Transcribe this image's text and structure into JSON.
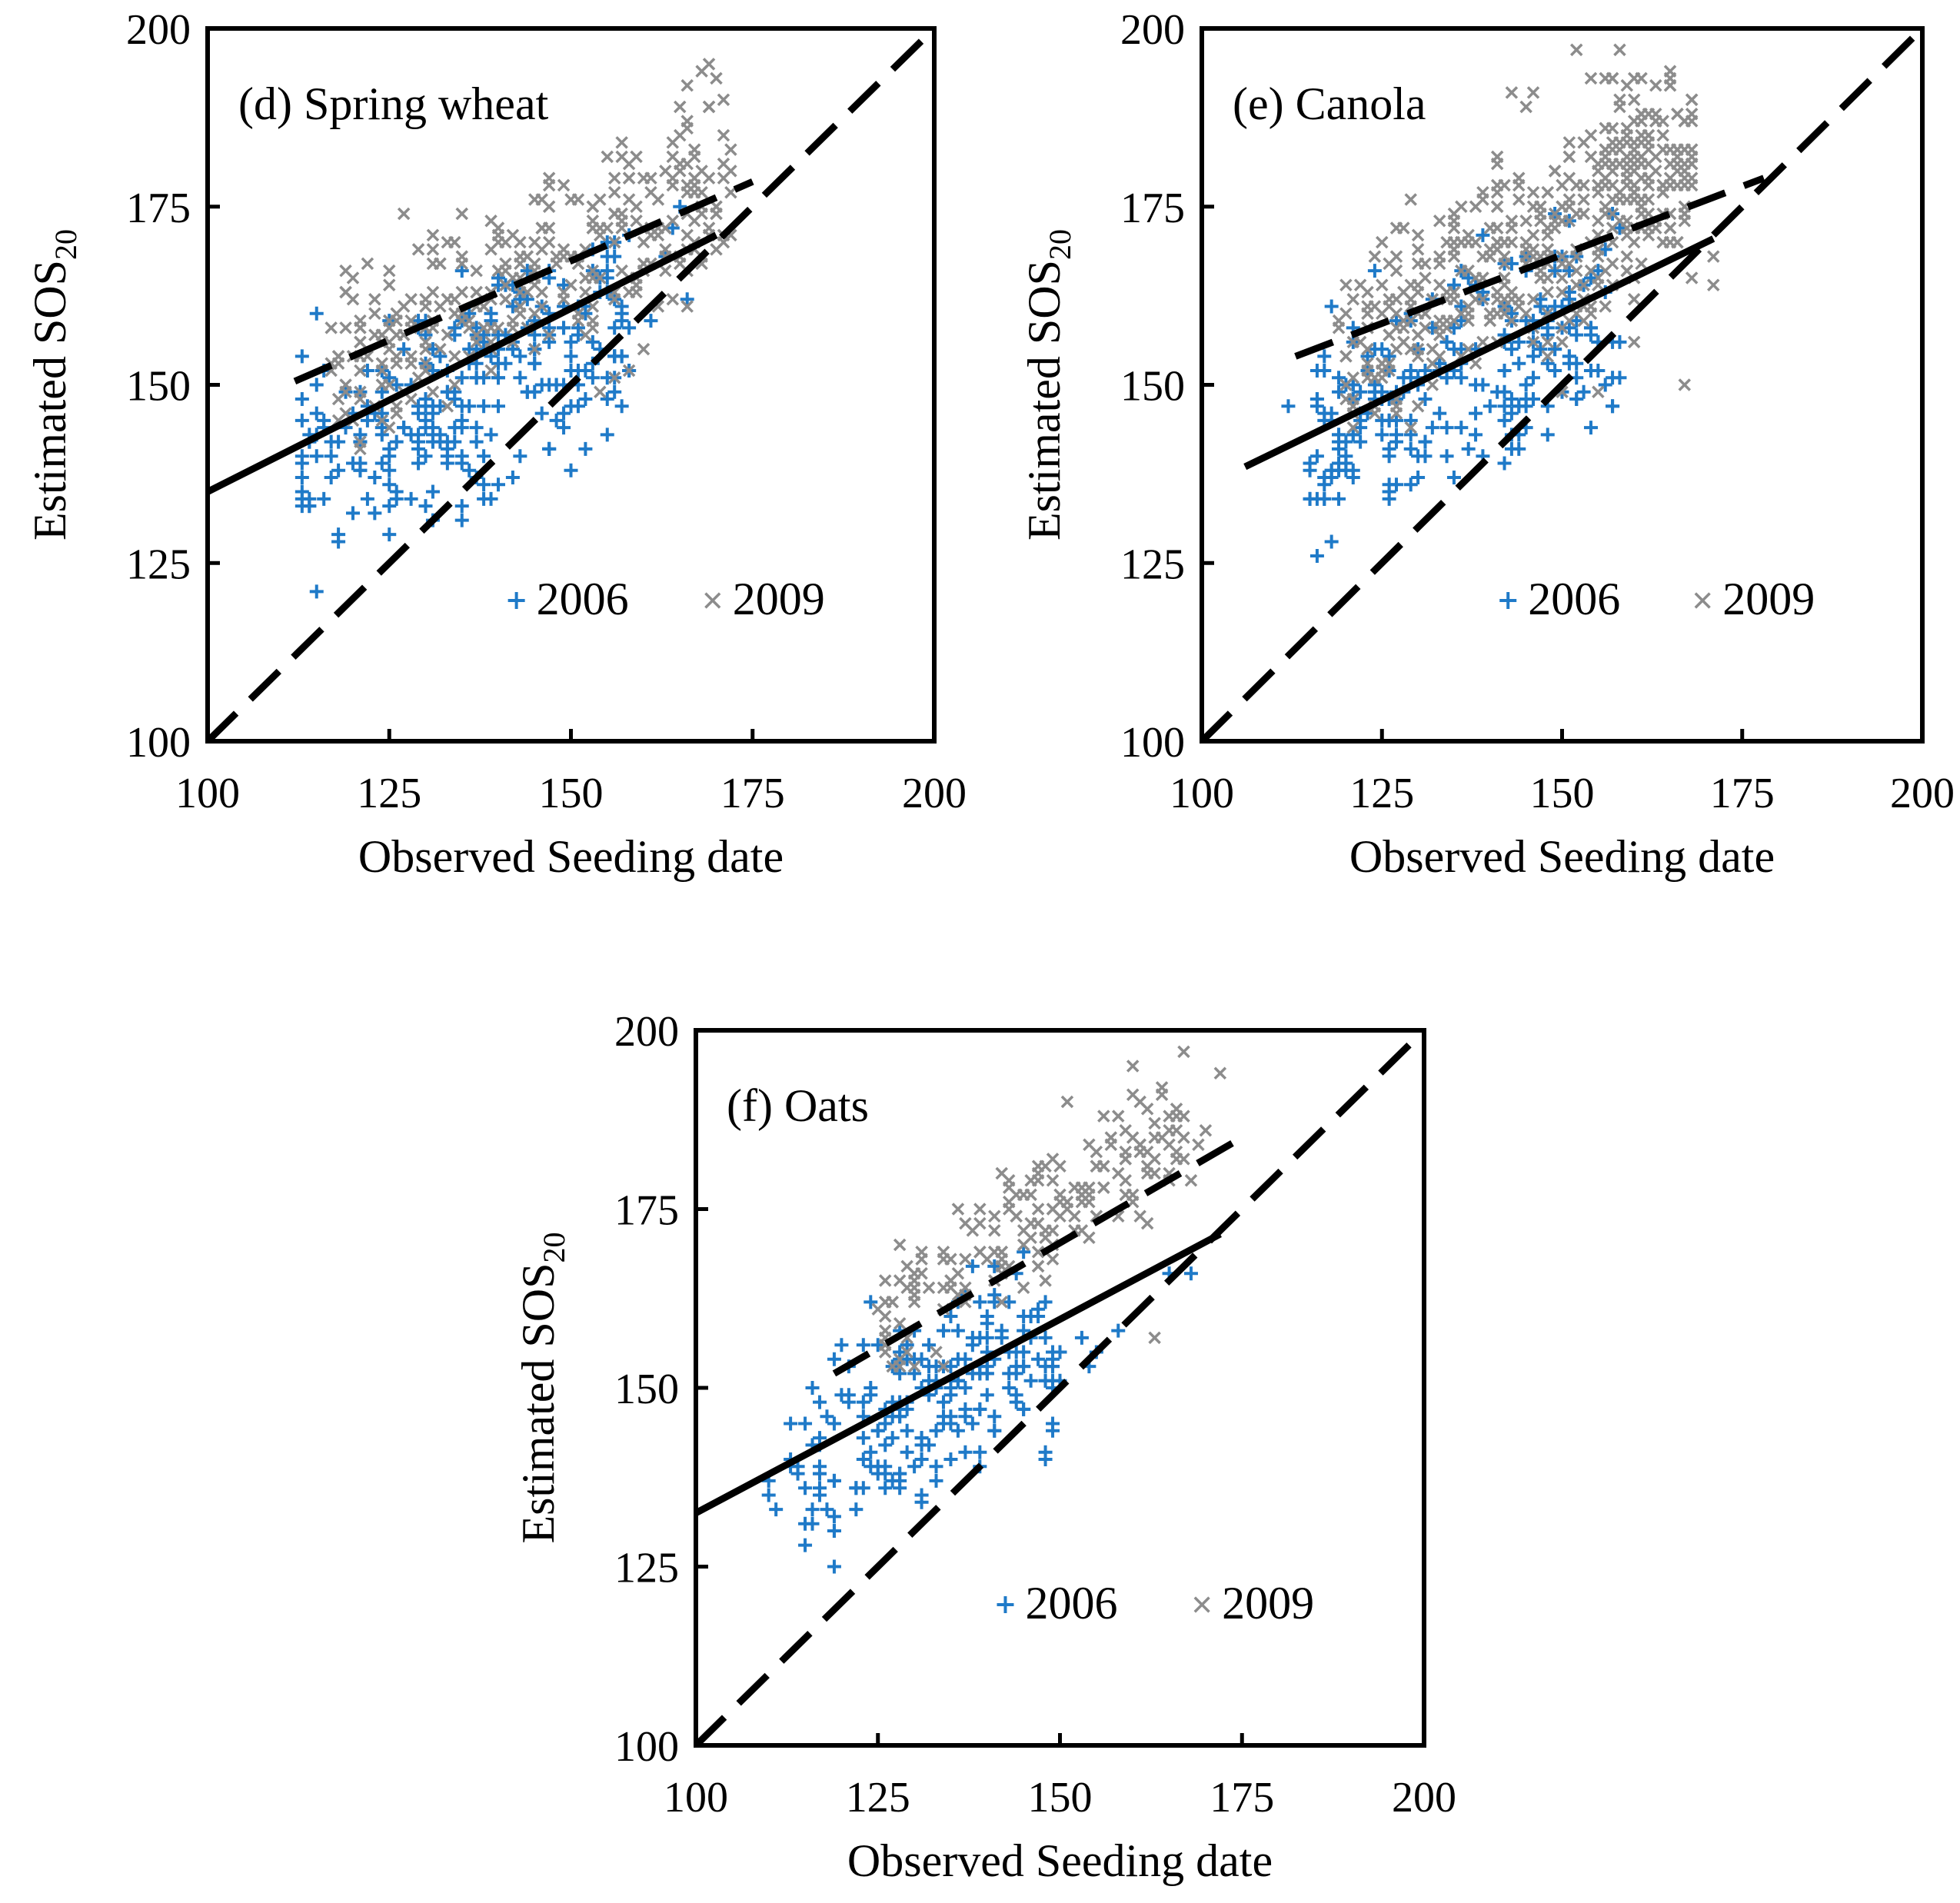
{
  "colors": {
    "series_2006": "#1f7ac8",
    "series_2009": "#8c8c8c",
    "lines": "#000000"
  },
  "chart_data": [
    {
      "type": "scatter",
      "title": "(d) Spring wheat",
      "xlabel": "Observed Seeding date",
      "ylabel_main": "Estimated SOS",
      "ylabel_sub": "20",
      "xlim": [
        100,
        200
      ],
      "ylim": [
        100,
        200
      ],
      "xticks": [
        "100",
        "125",
        "150",
        "175",
        "200"
      ],
      "yticks": [
        "100",
        "125",
        "150",
        "175",
        "200"
      ],
      "legend": [
        "2006",
        "2009"
      ],
      "series": [
        {
          "name": "2006",
          "marker": "plus",
          "clusters": [
            {
              "xmin": 112,
              "xmax": 158,
              "slope": 0.45,
              "intercept": 88,
              "spread": 7,
              "n": 260,
              "seed": 11
            }
          ],
          "points": [
            [
              120,
              132
            ],
            [
              122,
              134
            ],
            [
              130,
              133
            ],
            [
              135,
              131
            ],
            [
              138,
              134
            ],
            [
              142,
              137
            ],
            [
              147,
              141
            ],
            [
              149,
              144
            ],
            [
              152,
              141
            ],
            [
              157,
              147
            ],
            [
              158,
              152
            ],
            [
              161,
              159
            ],
            [
              163,
              168
            ],
            [
              164,
              172
            ],
            [
              165,
              175
            ],
            [
              166,
              162
            ]
          ]
        },
        {
          "name": "2009",
          "marker": "x",
          "clusters": [
            {
              "xmin": 117,
              "xmax": 172,
              "slope": 0.45,
              "intercept": 100,
              "spread": 6,
              "n": 320,
              "seed": 23
            }
          ],
          "points": [
            [
              127,
              174
            ],
            [
              165,
              189
            ],
            [
              166,
              192
            ],
            [
              168,
              194
            ],
            [
              169,
              195
            ],
            [
              170,
              193
            ],
            [
              169,
              189
            ],
            [
              171,
              185
            ],
            [
              172,
              183
            ],
            [
              164,
              184
            ],
            [
              166,
              181
            ],
            [
              167,
              183
            ],
            [
              168,
              180
            ],
            [
              170,
              175
            ],
            [
              158,
              152
            ],
            [
              160,
              155
            ],
            [
              156,
              151
            ],
            [
              154,
              149
            ]
          ]
        }
      ],
      "lines": [
        {
          "name": "fit-2006",
          "style": "solid",
          "points": [
            [
              100,
              135
            ],
            [
              170,
              171
            ]
          ]
        },
        {
          "name": "fit-2009",
          "style": "dashed",
          "points": [
            [
              112,
              150.5
            ],
            [
              175,
              178.5
            ]
          ]
        },
        {
          "name": "one-to-one",
          "style": "dashed",
          "points": [
            [
              100,
              100
            ],
            [
              200,
              200
            ]
          ]
        }
      ]
    },
    {
      "type": "scatter",
      "title": "(e) Canola",
      "xlabel": "Observed Seeding date",
      "ylabel_main": "Estimated SOS",
      "ylabel_sub": "20",
      "xlim": [
        100,
        200
      ],
      "ylim": [
        100,
        200
      ],
      "xticks": [
        "100",
        "125",
        "150",
        "175",
        "200"
      ],
      "yticks": [
        "100",
        "125",
        "150",
        "175",
        "200"
      ],
      "legend": [
        "2006",
        "2009"
      ],
      "series": [
        {
          "name": "2006",
          "marker": "plus",
          "clusters": [
            {
              "xmin": 115,
              "xmax": 158,
              "slope": 0.45,
              "intercept": 89,
              "spread": 7,
              "n": 240,
              "seed": 37
            }
          ],
          "points": [
            [
              112,
              147
            ],
            [
              115,
              138
            ],
            [
              118,
              161
            ],
            [
              120,
              138
            ],
            [
              124,
              166
            ],
            [
              130,
              140
            ],
            [
              134,
              140
            ],
            [
              139,
              140
            ],
            [
              143,
              141
            ],
            [
              146,
              148
            ],
            [
              148,
              143
            ],
            [
              157,
              147
            ],
            [
              158,
              156
            ]
          ]
        },
        {
          "name": "2009",
          "marker": "x",
          "clusters": [
            {
              "xmin": 119,
              "xmax": 168,
              "slope": 0.5,
              "intercept": 96,
              "spread": 7,
              "n": 380,
              "seed": 53
            },
            {
              "xmin": 155,
              "xmax": 168,
              "slope": 0.2,
              "intercept": 149,
              "spread": 6,
              "n": 90,
              "seed": 61
            }
          ],
          "points": [
            [
              143,
              191
            ],
            [
              145,
              189
            ],
            [
              146,
              191
            ],
            [
              152,
              197
            ],
            [
              154,
              193
            ],
            [
              167,
              150
            ],
            [
              171,
              164
            ],
            [
              171,
              168
            ],
            [
              168,
              190
            ],
            [
              160,
              156
            ],
            [
              155,
              149
            ],
            [
              150,
              149
            ]
          ]
        }
      ],
      "lines": [
        {
          "name": "fit-2006",
          "style": "solid",
          "points": [
            [
              106,
              138.5
            ],
            [
              171,
              170.5
            ]
          ]
        },
        {
          "name": "fit-2009",
          "style": "dashed",
          "points": [
            [
              113,
              154
            ],
            [
              178,
              179
            ]
          ]
        },
        {
          "name": "one-to-one",
          "style": "dashed",
          "points": [
            [
              100,
              100
            ],
            [
              200,
              200
            ]
          ]
        }
      ]
    },
    {
      "type": "scatter",
      "title": "(f) Oats",
      "xlabel": "Observed Seeding date",
      "ylabel_main": "Estimated SOS",
      "ylabel_sub": "20",
      "xlim": [
        100,
        200
      ],
      "ylim": [
        100,
        200
      ],
      "xticks": [
        "100",
        "125",
        "150",
        "175",
        "200"
      ],
      "yticks": [
        "100",
        "125",
        "150",
        "175",
        "200"
      ],
      "legend": [
        "2006",
        "2009"
      ],
      "series": [
        {
          "name": "2006",
          "marker": "plus",
          "clusters": [
            {
              "xmin": 113,
              "xmax": 150,
              "slope": 0.5,
              "intercept": 82,
              "spread": 6,
              "n": 200,
              "seed": 71
            }
          ],
          "points": [
            [
              110,
              137
            ],
            [
              110,
              135
            ],
            [
              111,
              133
            ],
            [
              119,
              130
            ],
            [
              119,
              125
            ],
            [
              119,
              137
            ],
            [
              120,
              156
            ],
            [
              123,
              156
            ],
            [
              124,
              162
            ],
            [
              128,
              158
            ],
            [
              133,
              139
            ],
            [
              148,
              141
            ],
            [
              148,
              140
            ],
            [
              153,
              157
            ],
            [
              154,
              153
            ],
            [
              155,
              155
            ],
            [
              158,
              158
            ],
            [
              165,
              166
            ],
            [
              168,
              166
            ]
          ]
        },
        {
          "name": "2009",
          "marker": "x",
          "clusters": [
            {
              "xmin": 125,
              "xmax": 167,
              "slope": 0.6,
              "intercept": 86,
              "spread": 5,
              "n": 180,
              "seed": 83
            }
          ],
          "points": [
            [
              143,
              176
            ],
            [
              163,
              157
            ],
            [
              165,
              184
            ],
            [
              167,
              188
            ],
            [
              167,
              197
            ],
            [
              169,
              184
            ],
            [
              170,
              186
            ],
            [
              172,
              194
            ],
            [
              168,
              179
            ]
          ]
        }
      ],
      "lines": [
        {
          "name": "fit-2006",
          "style": "solid",
          "points": [
            [
              100,
              132.5
            ],
            [
              172,
              171.5
            ]
          ]
        },
        {
          "name": "fit-2009",
          "style": "dashed",
          "points": [
            [
              119,
              152
            ],
            [
              175,
              185
            ]
          ]
        },
        {
          "name": "one-to-one",
          "style": "dashed",
          "points": [
            [
              100,
              100
            ],
            [
              200,
              200
            ]
          ]
        }
      ]
    }
  ]
}
